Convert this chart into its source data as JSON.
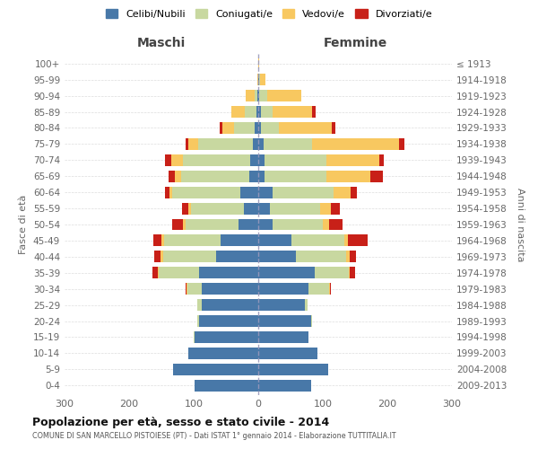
{
  "age_groups": [
    "100+",
    "95-99",
    "90-94",
    "85-89",
    "80-84",
    "75-79",
    "70-74",
    "65-69",
    "60-64",
    "55-59",
    "50-54",
    "45-49",
    "40-44",
    "35-39",
    "30-34",
    "25-29",
    "20-24",
    "15-19",
    "10-14",
    "5-9",
    "0-4"
  ],
  "birth_years": [
    "≤ 1913",
    "1914-1918",
    "1919-1923",
    "1924-1928",
    "1929-1933",
    "1934-1938",
    "1939-1943",
    "1944-1948",
    "1949-1953",
    "1954-1958",
    "1959-1963",
    "1964-1968",
    "1969-1973",
    "1974-1978",
    "1979-1983",
    "1984-1988",
    "1989-1993",
    "1994-1998",
    "1999-2003",
    "2004-2008",
    "2009-2013"
  ],
  "maschi_celibi": [
    0,
    0,
    2,
    3,
    5,
    8,
    12,
    14,
    28,
    22,
    30,
    58,
    65,
    92,
    88,
    88,
    92,
    98,
    108,
    132,
    98
  ],
  "maschi_coniugati": [
    0,
    0,
    4,
    18,
    32,
    85,
    105,
    105,
    105,
    82,
    82,
    88,
    82,
    62,
    22,
    6,
    3,
    2,
    0,
    0,
    0
  ],
  "maschi_vedovi": [
    0,
    2,
    14,
    20,
    18,
    15,
    18,
    10,
    4,
    4,
    4,
    4,
    4,
    2,
    1,
    0,
    0,
    0,
    0,
    0,
    0
  ],
  "maschi_divorziati": [
    0,
    0,
    0,
    0,
    5,
    5,
    10,
    10,
    8,
    10,
    18,
    12,
    10,
    8,
    2,
    0,
    0,
    0,
    0,
    0,
    0
  ],
  "femmine_celibi": [
    0,
    1,
    2,
    4,
    4,
    8,
    10,
    10,
    22,
    18,
    22,
    52,
    58,
    88,
    78,
    72,
    82,
    78,
    92,
    108,
    82
  ],
  "femmine_coniugati": [
    0,
    2,
    12,
    18,
    28,
    75,
    95,
    95,
    95,
    78,
    78,
    82,
    78,
    52,
    32,
    5,
    2,
    0,
    0,
    0,
    0
  ],
  "femmine_vedovi": [
    2,
    8,
    52,
    62,
    82,
    135,
    82,
    68,
    26,
    16,
    10,
    5,
    5,
    2,
    1,
    0,
    0,
    0,
    0,
    0,
    0
  ],
  "femmine_divorziati": [
    0,
    0,
    0,
    5,
    5,
    8,
    8,
    20,
    10,
    15,
    20,
    30,
    10,
    8,
    2,
    0,
    0,
    0,
    0,
    0,
    0
  ],
  "colors": {
    "celibi": "#4878a8",
    "coniugati": "#c8d8a0",
    "vedovi": "#f8c860",
    "divorziati": "#c82018"
  },
  "legend_labels": [
    "Celibi/Nubili",
    "Coniugati/e",
    "Vedovi/e",
    "Divorziati/e"
  ],
  "xlabel_left": "Maschi",
  "xlabel_right": "Femmine",
  "ylabel": "Fasce di età",
  "ylabel_right": "Anni di nascita",
  "title": "Popolazione per età, sesso e stato civile - 2014",
  "subtitle": "COMUNE DI SAN MARCELLO PISTOIESE (PT) - Dati ISTAT 1° gennaio 2014 - Elaborazione TUTTITALIA.IT",
  "xlim": 300,
  "background_color": "#ffffff"
}
